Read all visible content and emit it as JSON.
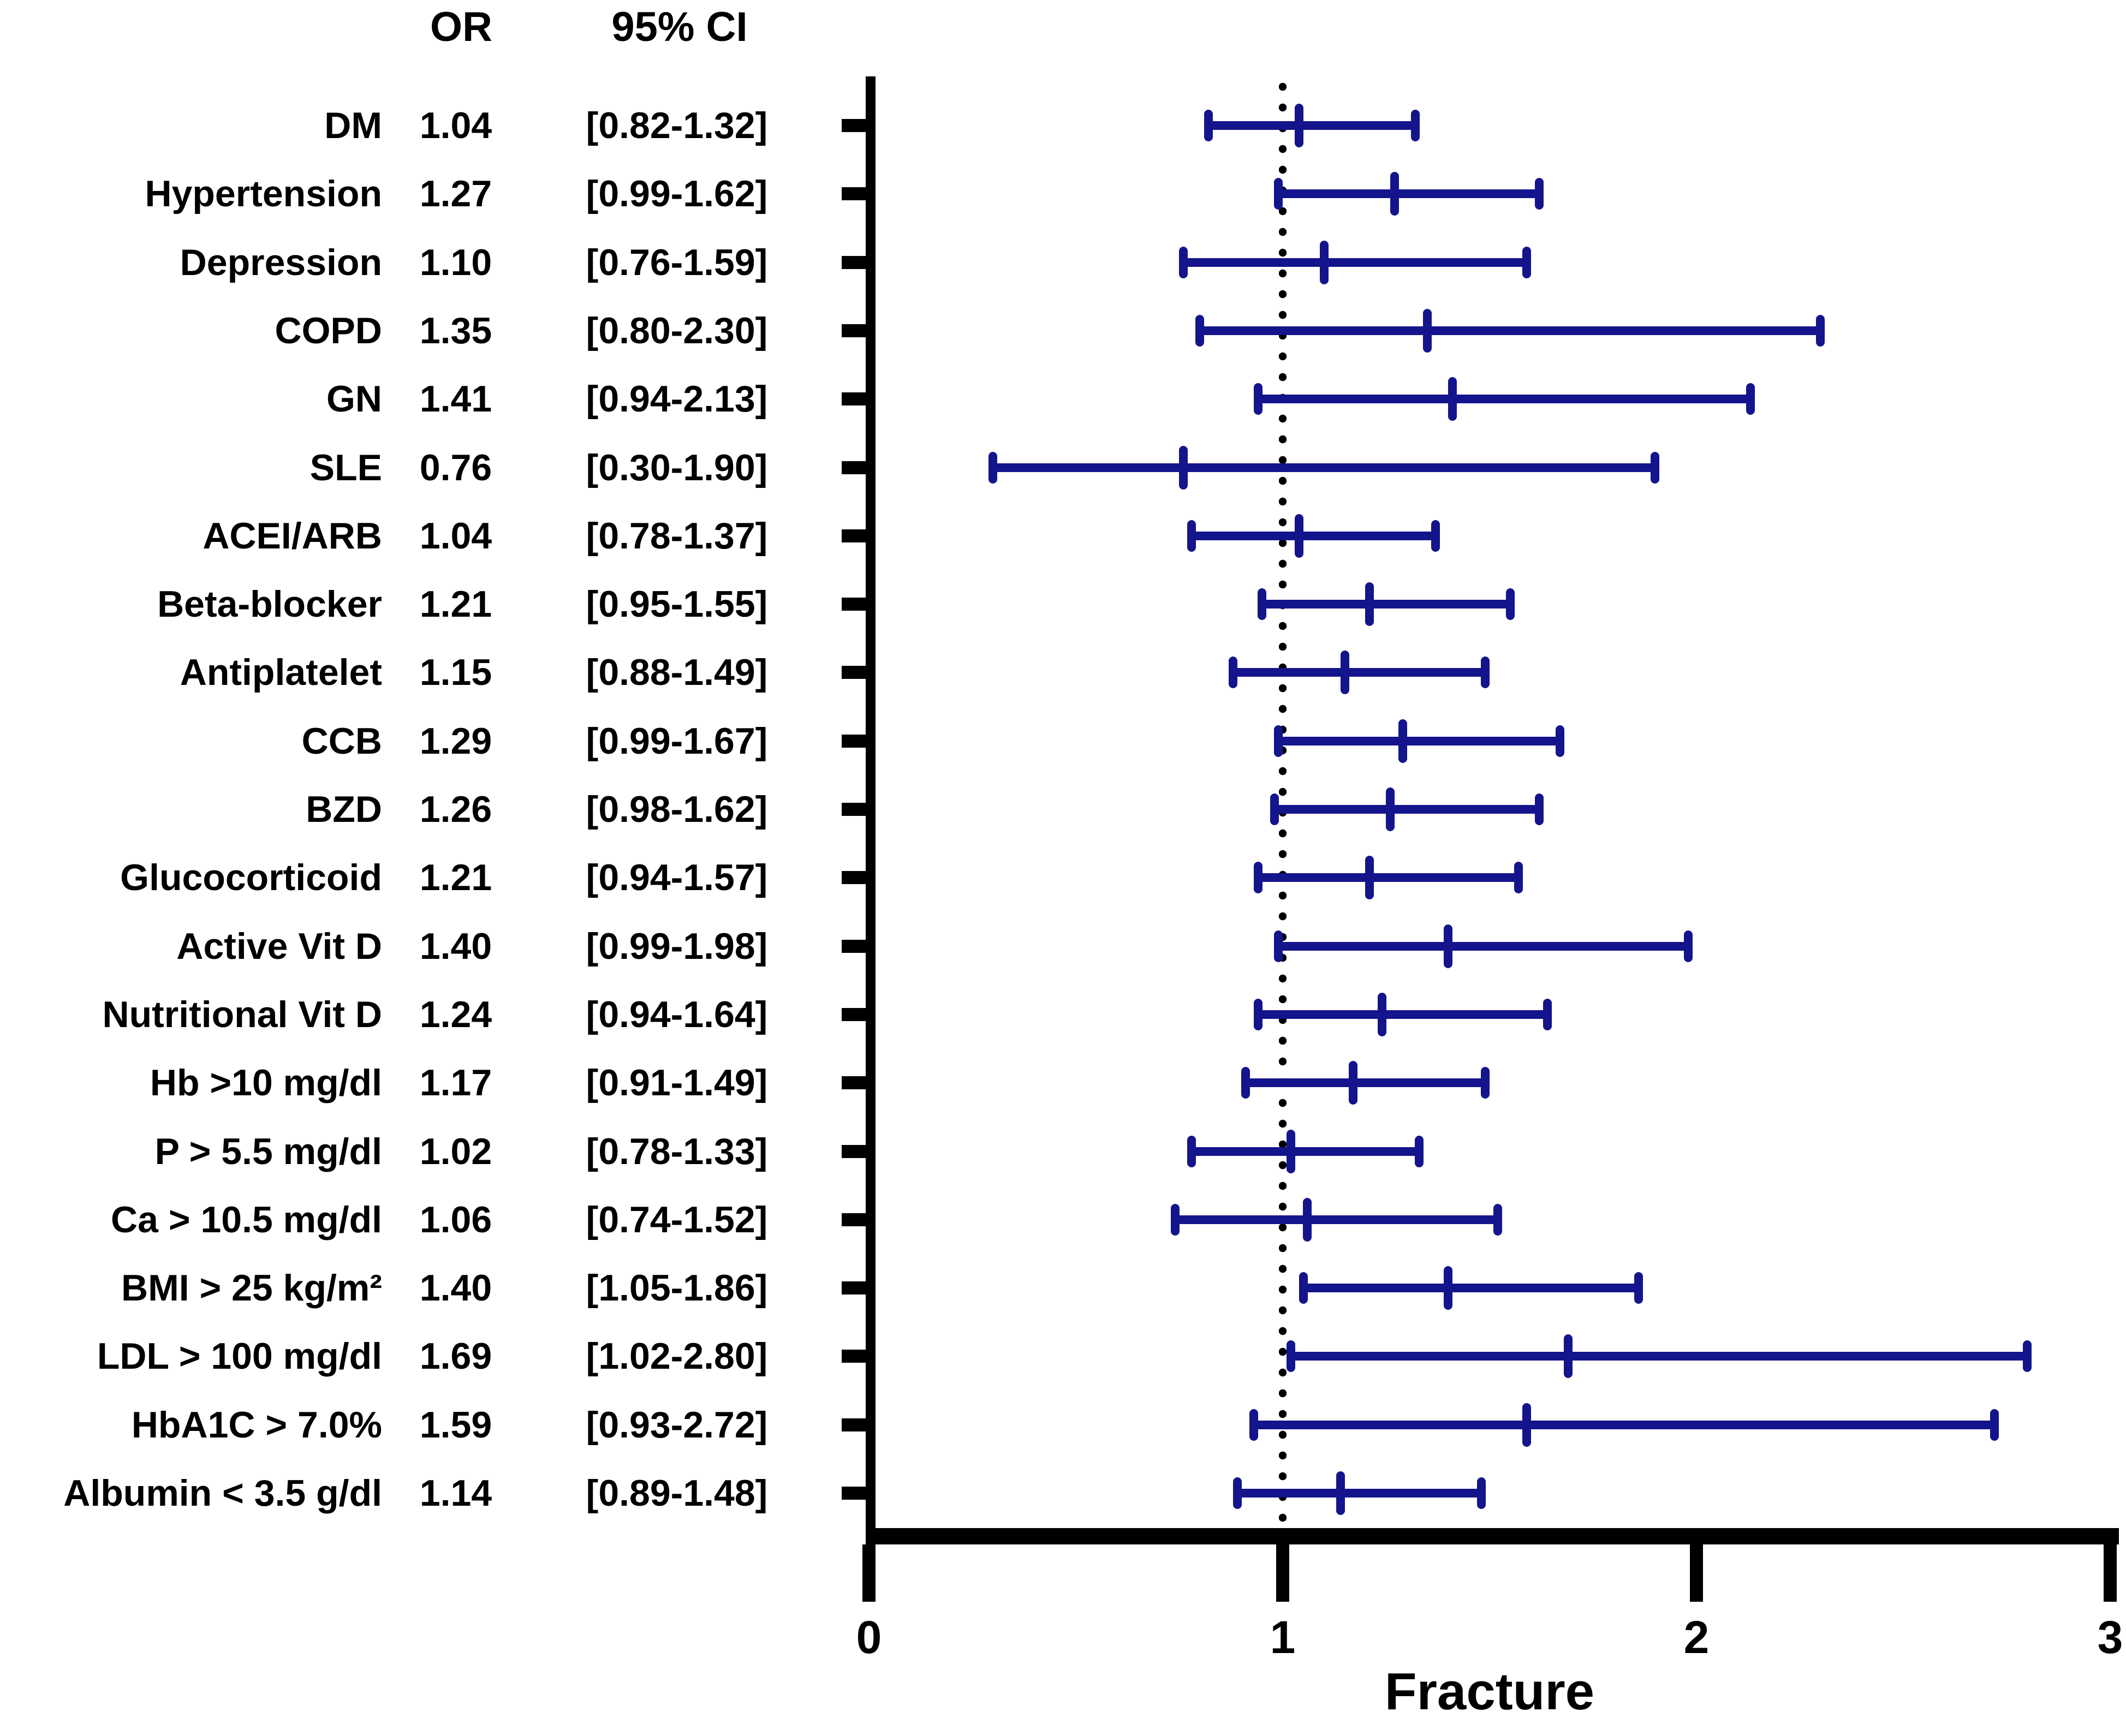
{
  "chart_data": {
    "type": "scatter",
    "subtype": "forest-plot",
    "columns": {
      "or_header": "OR",
      "ci_header": "95% CI"
    },
    "xlabel": "Fracture",
    "x_axis": {
      "min": 0,
      "max": 3,
      "ticks": [
        "0",
        "1",
        "2",
        "3"
      ]
    },
    "reference_line": 1.0,
    "grid": false,
    "colors": {
      "bar": "#14148C",
      "axis": "#000000",
      "text": "#000000",
      "background": "#FFFFFF"
    },
    "rows": [
      {
        "label": "DM",
        "or": 1.04,
        "or_text": "1.04",
        "ci_low": 0.82,
        "ci_high": 1.32,
        "ci_text": "[0.82-1.32]"
      },
      {
        "label": "Hypertension",
        "or": 1.27,
        "or_text": "1.27",
        "ci_low": 0.99,
        "ci_high": 1.62,
        "ci_text": "[0.99-1.62]"
      },
      {
        "label": "Depression",
        "or": 1.1,
        "or_text": "1.10",
        "ci_low": 0.76,
        "ci_high": 1.59,
        "ci_text": "[0.76-1.59]"
      },
      {
        "label": "COPD",
        "or": 1.35,
        "or_text": "1.35",
        "ci_low": 0.8,
        "ci_high": 2.3,
        "ci_text": "[0.80-2.30]"
      },
      {
        "label": "GN",
        "or": 1.41,
        "or_text": "1.41",
        "ci_low": 0.94,
        "ci_high": 2.13,
        "ci_text": "[0.94-2.13]"
      },
      {
        "label": "SLE",
        "or": 0.76,
        "or_text": "0.76",
        "ci_low": 0.3,
        "ci_high": 1.9,
        "ci_text": "[0.30-1.90]"
      },
      {
        "label": "ACEI/ARB",
        "or": 1.04,
        "or_text": "1.04",
        "ci_low": 0.78,
        "ci_high": 1.37,
        "ci_text": "[0.78-1.37]"
      },
      {
        "label": "Beta-blocker",
        "or": 1.21,
        "or_text": "1.21",
        "ci_low": 0.95,
        "ci_high": 1.55,
        "ci_text": "[0.95-1.55]"
      },
      {
        "label": "Antiplatelet",
        "or": 1.15,
        "or_text": "1.15",
        "ci_low": 0.88,
        "ci_high": 1.49,
        "ci_text": "[0.88-1.49]"
      },
      {
        "label": "CCB",
        "or": 1.29,
        "or_text": "1.29",
        "ci_low": 0.99,
        "ci_high": 1.67,
        "ci_text": "[0.99-1.67]"
      },
      {
        "label": "BZD",
        "or": 1.26,
        "or_text": "1.26",
        "ci_low": 0.98,
        "ci_high": 1.62,
        "ci_text": "[0.98-1.62]"
      },
      {
        "label": "Glucocorticoid",
        "or": 1.21,
        "or_text": "1.21",
        "ci_low": 0.94,
        "ci_high": 1.57,
        "ci_text": "[0.94-1.57]"
      },
      {
        "label": "Active Vit D",
        "or": 1.4,
        "or_text": "1.40",
        "ci_low": 0.99,
        "ci_high": 1.98,
        "ci_text": "[0.99-1.98]"
      },
      {
        "label": "Nutritional Vit D",
        "or": 1.24,
        "or_text": "1.24",
        "ci_low": 0.94,
        "ci_high": 1.64,
        "ci_text": "[0.94-1.64]"
      },
      {
        "label": "Hb >10 mg/dl",
        "or": 1.17,
        "or_text": "1.17",
        "ci_low": 0.91,
        "ci_high": 1.49,
        "ci_text": "[0.91-1.49]"
      },
      {
        "label": "P > 5.5 mg/dl",
        "or": 1.02,
        "or_text": "1.02",
        "ci_low": 0.78,
        "ci_high": 1.33,
        "ci_text": "[0.78-1.33]"
      },
      {
        "label": "Ca > 10.5 mg/dl",
        "or": 1.06,
        "or_text": "1.06",
        "ci_low": 0.74,
        "ci_high": 1.52,
        "ci_text": "[0.74-1.52]"
      },
      {
        "label": "BMI > 25 kg/m²",
        "or": 1.4,
        "or_text": "1.40",
        "ci_low": 1.05,
        "ci_high": 1.86,
        "ci_text": "[1.05-1.86]"
      },
      {
        "label": "LDL > 100 mg/dl",
        "or": 1.69,
        "or_text": "1.69",
        "ci_low": 1.02,
        "ci_high": 2.8,
        "ci_text": "[1.02-2.80]"
      },
      {
        "label": "HbA1C > 7.0%",
        "or": 1.59,
        "or_text": "1.59",
        "ci_low": 0.93,
        "ci_high": 2.72,
        "ci_text": "[0.93-2.72]"
      },
      {
        "label": "Albumin < 3.5 g/dl",
        "or": 1.14,
        "or_text": "1.14",
        "ci_low": 0.89,
        "ci_high": 1.48,
        "ci_text": "[0.89-1.48]"
      }
    ]
  }
}
